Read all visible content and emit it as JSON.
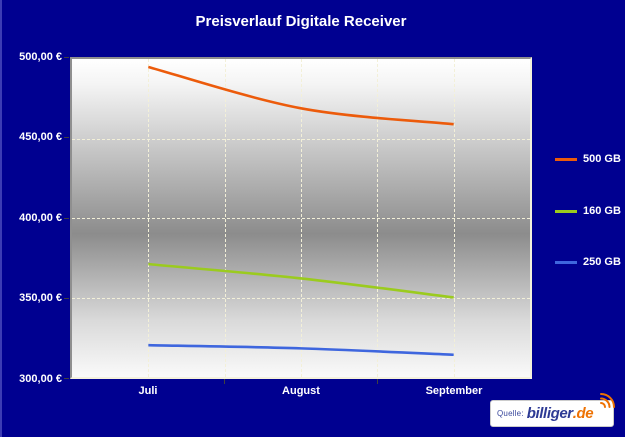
{
  "title": "Preisverlauf Digitale Receiver",
  "chart_data": {
    "type": "line",
    "categories": [
      "Juli",
      "August",
      "September"
    ],
    "series": [
      {
        "name": "500 GB",
        "color": "#EC5B0B",
        "values": [
          495,
          469,
          459
        ]
      },
      {
        "name": "160 GB",
        "color": "#9BCB1E",
        "values": [
          371,
          362,
          350
        ]
      },
      {
        "name": "250 GB",
        "color": "#3E66DE",
        "values": [
          320,
          318,
          314
        ]
      }
    ],
    "ylim": [
      300,
      500
    ],
    "y_ticks": [
      "500,00 €",
      "450,00 €",
      "400,00 €",
      "350,00 €",
      "300,00 €"
    ],
    "y_tick_values": [
      500,
      450,
      400,
      350,
      300
    ],
    "xlabel": "",
    "ylabel": "",
    "grid": "dashed ivory, vertical + horizontal",
    "legend_position": "right",
    "plot_background": "vertical gradient white-grey-white"
  },
  "colors": {
    "page_background": "#000090",
    "title_text": "#FFFFFF",
    "axis_text": "#FFFFFF",
    "gridline": "#F3F0D8",
    "logo_blue": "#2D3A94",
    "logo_orange": "#EE7203"
  },
  "source": {
    "prefix": "Quelle:",
    "brand": "billiger",
    "tld": ".de"
  }
}
